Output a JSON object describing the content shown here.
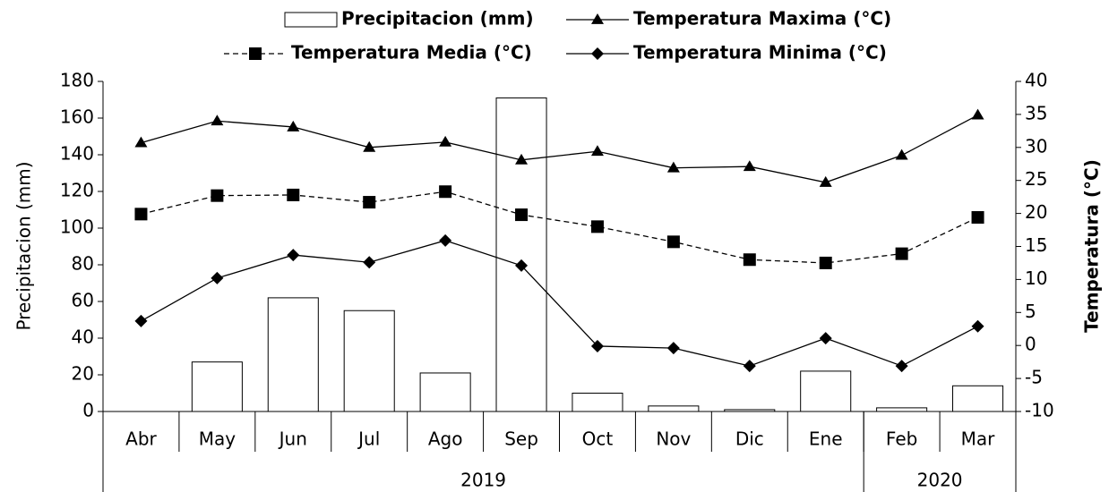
{
  "chart_data": {
    "type": "bar-line",
    "categories": [
      "Abr",
      "May",
      "Jun",
      "Jul",
      "Ago",
      "Sep",
      "Oct",
      "Nov",
      "Dic",
      "Ene",
      "Feb",
      "Mar"
    ],
    "groups": [
      {
        "label": "2019",
        "categories": 10
      },
      {
        "label": "2020",
        "categories": 2
      }
    ],
    "ylabel": "Precipitacion (mm)",
    "y2label": "Temperatura (°C)",
    "ylim": [
      0,
      180
    ],
    "yticks": [
      0,
      20,
      40,
      60,
      80,
      100,
      120,
      140,
      160,
      180
    ],
    "y2lim": [
      -10,
      40
    ],
    "y2ticks": [
      -10,
      -5,
      0,
      5,
      10,
      15,
      20,
      25,
      30,
      35,
      40
    ],
    "series": [
      {
        "name": "Precipitacion (mm)",
        "type": "bar",
        "color": "#000000",
        "fill": "#ffffff",
        "values": [
          0,
          27,
          62,
          55,
          21,
          171,
          10,
          3,
          1,
          22,
          2,
          14
        ]
      },
      {
        "name": "Temperatura Maxima (°C)",
        "type": "line",
        "axis": "y2",
        "color": "#000000",
        "marker": "triangle",
        "dashed": false,
        "values": [
          30.7,
          34.0,
          33.1,
          30.0,
          30.8,
          28.1,
          29.4,
          26.9,
          27.1,
          24.7,
          28.8,
          34.9
        ]
      },
      {
        "name": "Temperatura Media (°C)",
        "type": "line",
        "axis": "y2",
        "color": "#000000",
        "marker": "square",
        "dashed": true,
        "values": [
          19.9,
          22.7,
          22.8,
          21.7,
          23.3,
          19.8,
          18.0,
          15.7,
          13.0,
          12.5,
          13.9,
          19.4
        ]
      },
      {
        "name": "Temperatura Minima (°C)",
        "type": "line",
        "axis": "y2",
        "color": "#000000",
        "marker": "diamond",
        "dashed": false,
        "values": [
          3.7,
          10.2,
          13.7,
          12.6,
          15.9,
          12.1,
          -0.1,
          -0.4,
          -3.1,
          1.1,
          -3.1,
          2.9
        ]
      }
    ]
  }
}
